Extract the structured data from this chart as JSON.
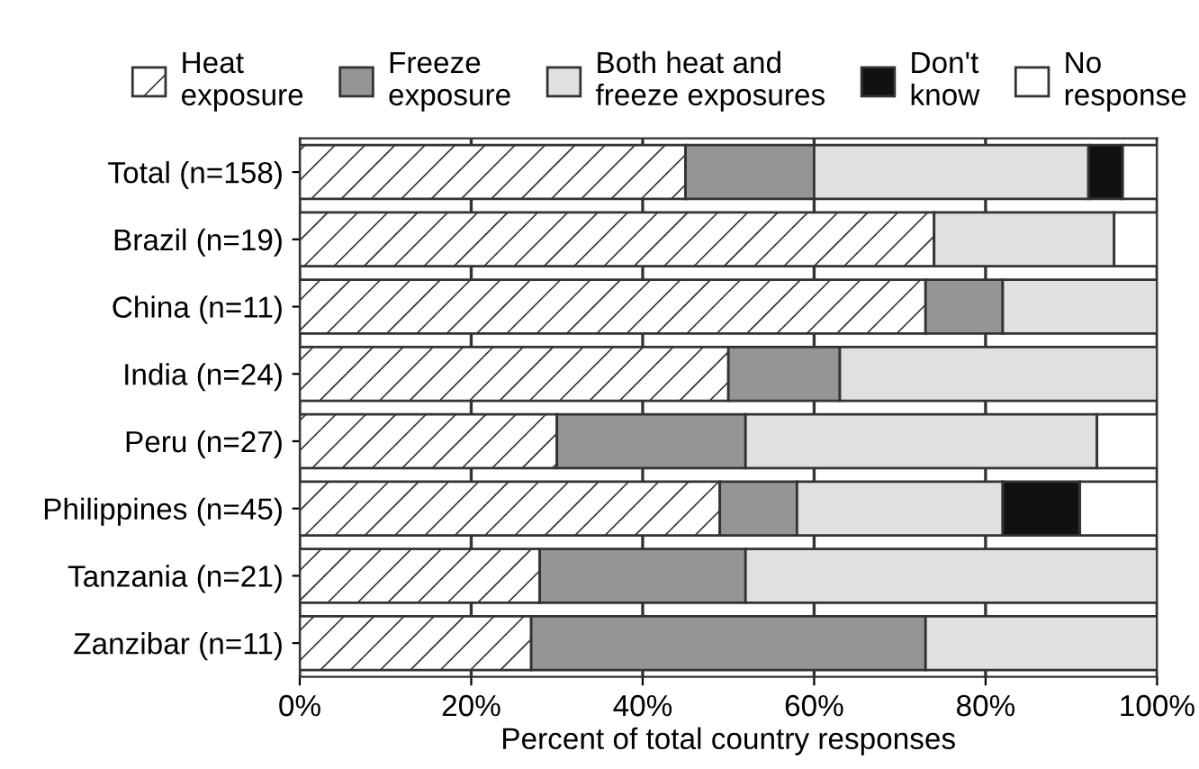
{
  "chart_data": {
    "type": "bar",
    "orientation": "horizontal",
    "stacked": true,
    "xlabel": "Percent of total country responses",
    "categories": [
      "Total (n=158)",
      "Brazil (n=19)",
      "China (n=11)",
      "India (n=24)",
      "Peru (n=27)",
      "Philippines (n=45)",
      "Tanzania (n=21)",
      "Zanzibar (n=11)"
    ],
    "series": [
      {
        "name": "Heat\nexposure",
        "color": "#ffffff",
        "values": [
          45,
          74,
          73,
          50,
          30,
          49,
          28,
          27
        ]
      },
      {
        "name": "Freeze\nexposure",
        "color": "#959595",
        "values": [
          15,
          0,
          9,
          13,
          22,
          9,
          24,
          46
        ]
      },
      {
        "name": "Both heat and\nfreeze exposures",
        "color": "#e0e0e0",
        "values": [
          32,
          21,
          18,
          37,
          41,
          24,
          48,
          27
        ]
      },
      {
        "name": "Don't\nknow",
        "color": "#111111",
        "values": [
          4,
          0,
          0,
          0,
          0,
          9,
          0,
          0
        ]
      },
      {
        "name": "No\nresponse",
        "color": "#ffffff",
        "values": [
          4,
          5,
          0,
          0,
          7,
          9,
          0,
          0
        ]
      }
    ],
    "xlim": [
      0,
      100
    ],
    "xticks": [
      {
        "value": 0,
        "label": "0%"
      },
      {
        "value": 20,
        "label": "20%"
      },
      {
        "value": 40,
        "label": "40%"
      },
      {
        "value": 60,
        "label": "60%"
      },
      {
        "value": 80,
        "label": "80%"
      },
      {
        "value": 100,
        "label": "100%"
      }
    ],
    "grid": "x",
    "legend": "top"
  }
}
